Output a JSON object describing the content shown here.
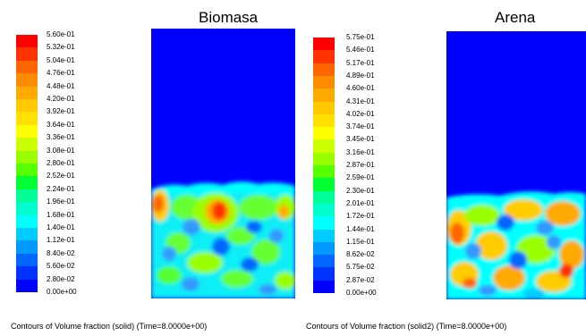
{
  "panels": [
    {
      "title": "Biomasa",
      "caption": "Contours of Volume fraction (solid)   (Time=8.0000e+00)",
      "scale_labels": [
        "5.60e-01",
        "5.32e-01",
        "5.04e-01",
        "4.76e-01",
        "4.48e-01",
        "4.20e-01",
        "3.92e-01",
        "3.64e-01",
        "3.36e-01",
        "3.08e-01",
        "2.80e-01",
        "2.52e-01",
        "2.24e-01",
        "1.96e-01",
        "1.68e-01",
        "1.40e-01",
        "1.12e-01",
        "8.40e-02",
        "5.60e-02",
        "2.80e-02",
        "0.00e+00"
      ]
    },
    {
      "title": "Arena",
      "caption": "Contours of Volume fraction (solid2)   (Time=8.0000e+00)",
      "scale_labels": [
        "5.75e-01",
        "5.46e-01",
        "5.17e-01",
        "4.89e-01",
        "4.60e-01",
        "4.31e-01",
        "4.02e-01",
        "3.74e-01",
        "3.45e-01",
        "3.16e-01",
        "2.87e-01",
        "2.59e-01",
        "2.30e-01",
        "2.01e-01",
        "1.72e-01",
        "1.44e-01",
        "1.15e-01",
        "8.62e-02",
        "5.75e-02",
        "2.87e-02",
        "0.00e+00"
      ]
    }
  ],
  "colormap": [
    "#ff0000",
    "#ff3300",
    "#ff6600",
    "#ff8c00",
    "#ffaa00",
    "#ffc800",
    "#ffe000",
    "#ffff00",
    "#ccff00",
    "#99ff00",
    "#55ff00",
    "#00ff33",
    "#00ff99",
    "#00ffcc",
    "#00ffff",
    "#00ccff",
    "#0099ff",
    "#0066ff",
    "#0033ff",
    "#0000ff"
  ],
  "field_background": "#0000ff"
}
